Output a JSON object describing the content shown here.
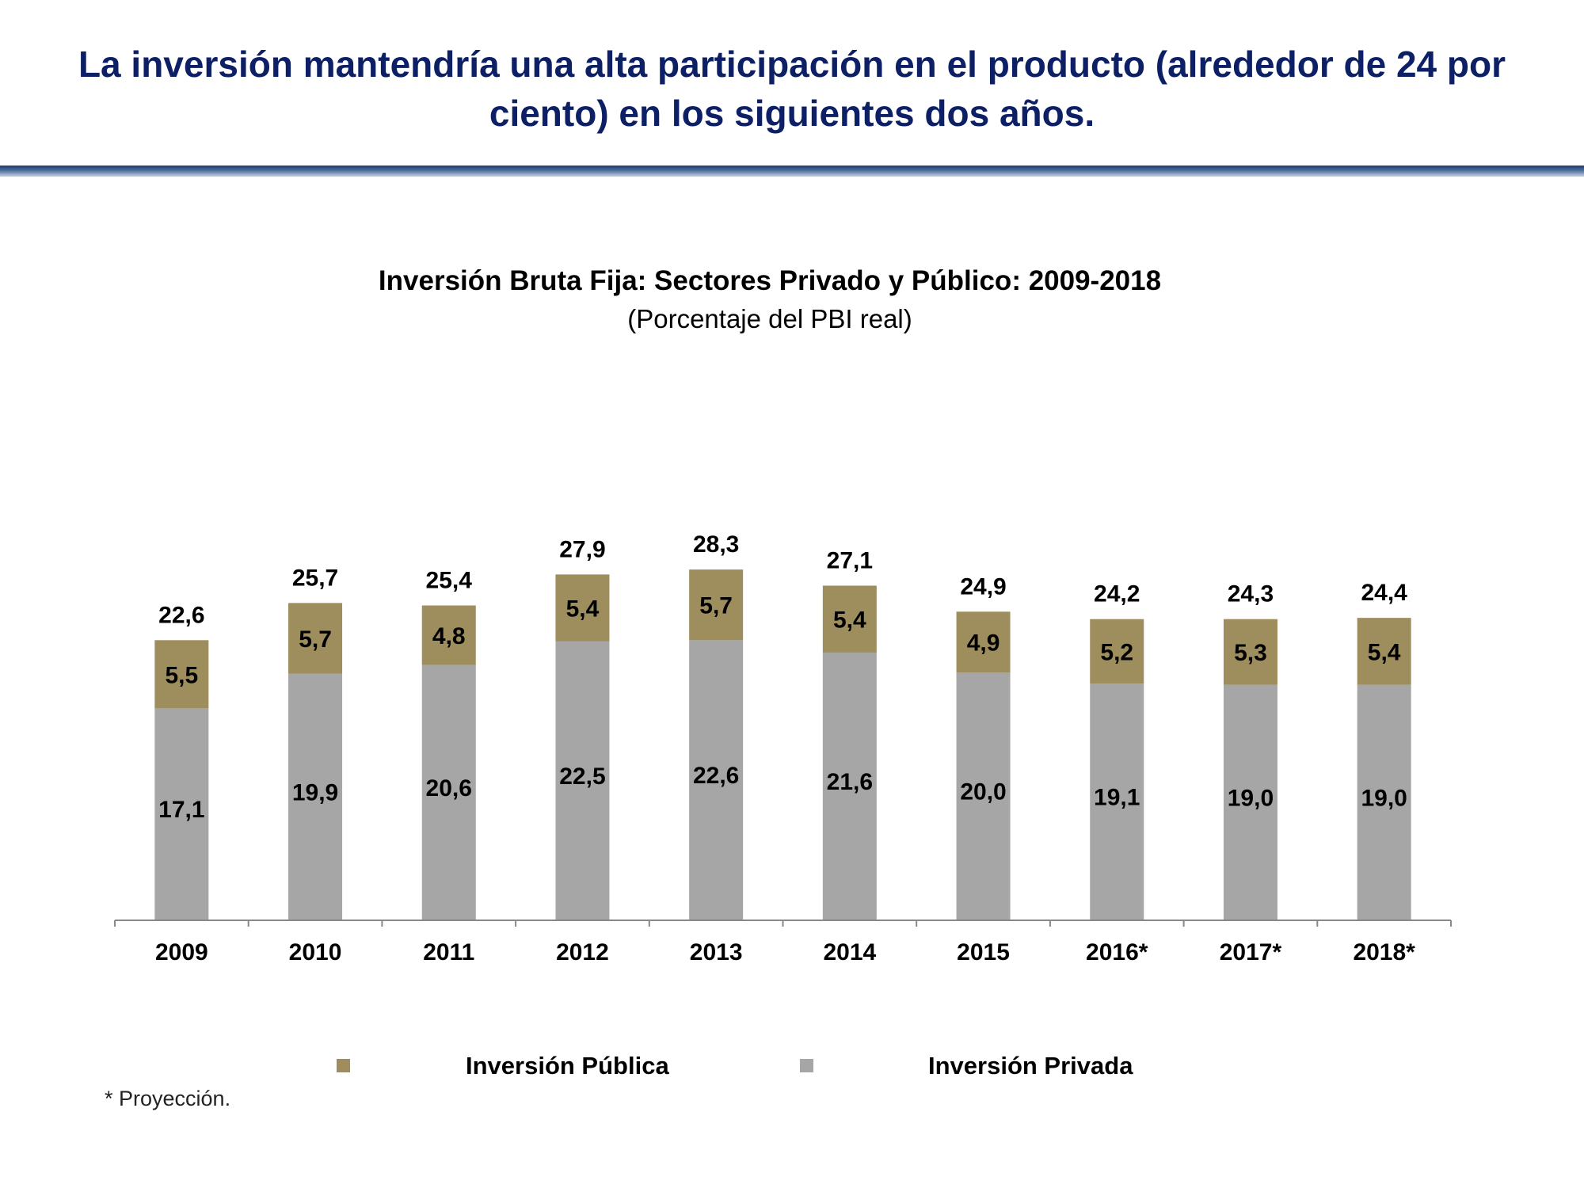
{
  "slide": {
    "headline": "La inversión mantendría una alta participación en el producto (alrededor de 24 por ciento) en los siguientes dos años.",
    "footnote": "* Proyección."
  },
  "colors": {
    "headline": "#0d2066",
    "rule": "#3b5a8c",
    "publica": "#9e8d5d",
    "privada": "#a6a6a6",
    "axis": "#888888",
    "text": "#000000"
  },
  "chart_data": {
    "type": "bar",
    "stacked": true,
    "title": "Inversión Bruta Fija: Sectores Privado y Público: 2009-2018",
    "subtitle": "(Porcentaje del PBI real)",
    "xlabel": "",
    "ylabel": "",
    "ylim": [
      0,
      30
    ],
    "grid": false,
    "legend_position": "bottom",
    "categories": [
      "2009",
      "2010",
      "2011",
      "2012",
      "2013",
      "2014",
      "2015",
      "2016*",
      "2017*",
      "2018*"
    ],
    "series": [
      {
        "name": "Inversión Privada",
        "values": [
          17.1,
          19.9,
          20.6,
          22.5,
          22.6,
          21.6,
          20.0,
          19.1,
          19.0,
          19.0
        ],
        "labels": [
          "17,1",
          "19,9",
          "20,6",
          "22,5",
          "22,6",
          "21,6",
          "20,0",
          "19,1",
          "19,0",
          "19,0"
        ]
      },
      {
        "name": "Inversión Pública",
        "values": [
          5.5,
          5.7,
          4.8,
          5.4,
          5.7,
          5.4,
          4.9,
          5.2,
          5.3,
          5.4
        ],
        "labels": [
          "5,5",
          "5,7",
          "4,8",
          "5,4",
          "5,7",
          "5,4",
          "4,9",
          "5,2",
          "5,3",
          "5,4"
        ]
      }
    ],
    "totals": [
      22.6,
      25.7,
      25.4,
      27.9,
      28.3,
      27.1,
      24.9,
      24.2,
      24.3,
      24.4
    ],
    "total_labels": [
      "22,6",
      "25,7",
      "25,4",
      "27,9",
      "28,3",
      "27,1",
      "24,9",
      "24,2",
      "24,3",
      "24,4"
    ],
    "legend": [
      "Inversión Pública",
      "Inversión Privada"
    ]
  }
}
